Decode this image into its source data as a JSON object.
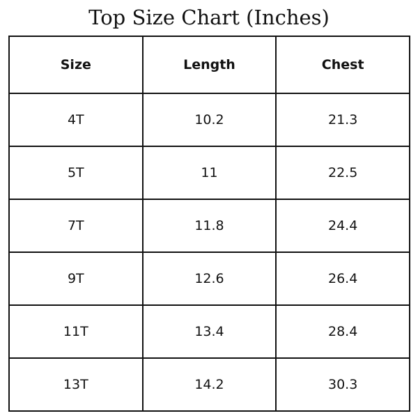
{
  "title": "Top Size Chart (Inches)",
  "table": {
    "header": [
      "Size",
      "Length",
      "Chest"
    ],
    "rows": [
      [
        "4T",
        "10.2",
        "21.3"
      ],
      [
        "5T",
        "11",
        "22.5"
      ],
      [
        "7T",
        "11.8",
        "24.4"
      ],
      [
        "9T",
        "12.6",
        "26.4"
      ],
      [
        "11T",
        "13.4",
        "28.4"
      ],
      [
        "13T",
        "14.2",
        "30.3"
      ]
    ]
  }
}
